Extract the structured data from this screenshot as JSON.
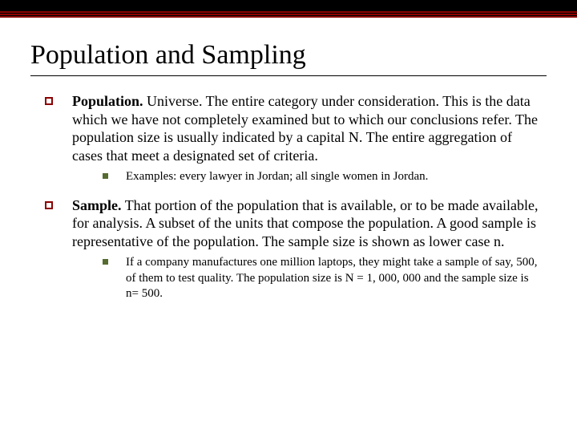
{
  "slide": {
    "title": "Population and Sampling",
    "top_bar_color": "#000000",
    "stripe_color": "#8b0000",
    "background_color": "#ffffff",
    "title_fontsize": 34,
    "body_fontsize": 18,
    "sub_fontsize": 15,
    "level1_bullet_border_color": "#8b0000",
    "level2_bullet_color": "#556b2f",
    "items": [
      {
        "lead": "Population.",
        "text": " Universe. The entire category under consideration. This is the data which we have not completely examined but to which our conclusions refer.  The population size is usually indicated by a capital N. The entire aggregation of cases that meet a designated set of criteria.",
        "sub": "Examples:  every lawyer in Jordan; all single women in Jordan."
      },
      {
        "lead": "Sample.",
        "text": "  That portion of the population that is available, or to be made available, for analysis. A subset of the units that compose the population. A good sample is representative of the population. The sample size is shown as lower case n.",
        "sub": "If a company manufactures one million laptops, they might take a sample of say, 500, of them to test quality. The population size is N = 1, 000, 000 and the sample size is n= 500."
      }
    ]
  }
}
